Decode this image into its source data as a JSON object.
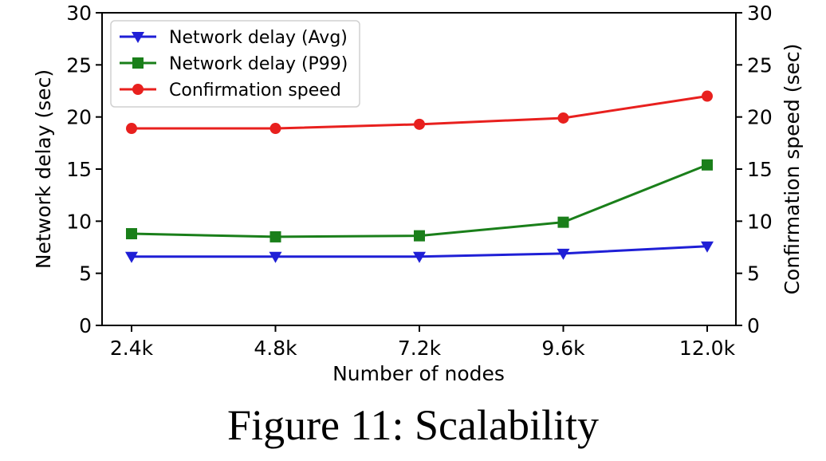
{
  "chart_data": {
    "type": "line",
    "categories": [
      "2.4k",
      "4.8k",
      "7.2k",
      "9.6k",
      "12.0k"
    ],
    "series": [
      {
        "name": "Network delay (Avg)",
        "values": [
          6.6,
          6.6,
          6.6,
          6.9,
          7.6
        ],
        "color": "#1f1fd6",
        "marker": "triangle-down",
        "axis": "left"
      },
      {
        "name": "Network delay (P99)",
        "values": [
          8.8,
          8.5,
          8.6,
          9.9,
          15.4
        ],
        "color": "#1a7f1a",
        "marker": "square",
        "axis": "left"
      },
      {
        "name": "Confirmation speed",
        "values": [
          18.9,
          18.9,
          19.3,
          19.9,
          22.0
        ],
        "color": "#e8201e",
        "marker": "circle",
        "axis": "right"
      }
    ],
    "xlabel": "Number of nodes",
    "ylabel": "Network delay (sec)",
    "y2label": "Confirmation speed (sec)",
    "ylim": [
      0,
      30
    ],
    "y2lim": [
      0,
      30
    ],
    "yticks": [
      0,
      5,
      10,
      15,
      20,
      25,
      30
    ],
    "y2ticks": [
      0,
      5,
      10,
      15,
      20,
      25,
      30
    ],
    "grid": false,
    "legend_position": "top-left"
  },
  "caption": "Figure 11: Scalability"
}
